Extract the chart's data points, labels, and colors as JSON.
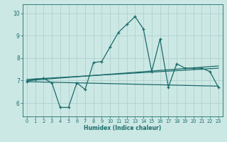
{
  "xlabel": "Humidex (Indice chaleur)",
  "background_color": "#cce8e4",
  "grid_color": "#aaccca",
  "line_color": "#1a6b6b",
  "x_ticks": [
    0,
    1,
    2,
    3,
    4,
    5,
    6,
    7,
    8,
    9,
    10,
    11,
    12,
    13,
    14,
    15,
    16,
    17,
    18,
    19,
    20,
    21,
    22,
    23
  ],
  "y_ticks": [
    6,
    7,
    8,
    9,
    10
  ],
  "ylim": [
    5.4,
    10.4
  ],
  "xlim": [
    -0.5,
    23.5
  ],
  "line1_x": [
    0,
    1,
    2,
    3,
    4,
    5,
    6,
    7,
    8,
    9,
    10,
    11,
    12,
    13,
    14,
    15,
    16,
    17,
    18,
    19,
    20,
    21,
    22,
    23
  ],
  "line1_y": [
    6.95,
    7.05,
    7.1,
    6.9,
    5.8,
    5.8,
    6.9,
    6.6,
    7.8,
    7.85,
    8.5,
    9.15,
    9.5,
    9.85,
    9.3,
    7.4,
    8.85,
    6.7,
    7.75,
    7.55,
    7.55,
    7.55,
    7.4,
    6.7
  ],
  "line2_x": [
    0,
    23
  ],
  "line2_y": [
    6.95,
    6.75
  ],
  "line3_x": [
    0,
    23
  ],
  "line3_y": [
    7.0,
    7.65
  ],
  "line4_x": [
    0,
    23
  ],
  "line4_y": [
    7.05,
    7.55
  ]
}
